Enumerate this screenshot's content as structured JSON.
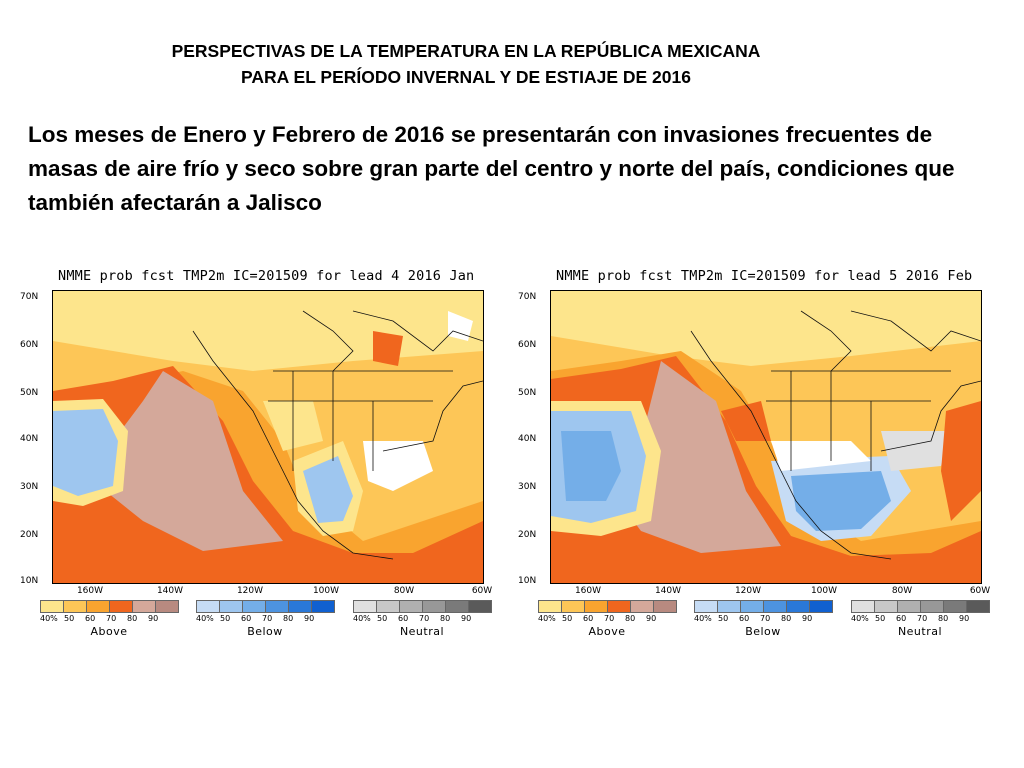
{
  "title": {
    "line1": "PERSPECTIVAS DE LA TEMPERATURA EN LA REPÚBLICA MEXICANA",
    "line2": "PARA EL PERÍODO INVERNAL Y DE ESTIAJE DE 2016"
  },
  "body_text": "Los meses de Enero y Febrero de 2016 se presentarán con invasiones frecuentes de masas de aire frío y seco sobre gran parte del centro y norte del país, condiciones que también afectarán a Jalisco",
  "maps": [
    {
      "title": "NMME prob fcst TMP2m IC=201509 for lead 4 2016 Jan"
    },
    {
      "title": "NMME prob fcst TMP2m IC=201509 for lead 5 2016 Feb"
    }
  ],
  "lat_labels": [
    "70N",
    "60N",
    "50N",
    "40N",
    "30N",
    "20N",
    "10N"
  ],
  "lon_labels": [
    "160W",
    "140W",
    "120W",
    "100W",
    "80W",
    "60W"
  ],
  "legend": [
    {
      "label": "Above",
      "ticks": [
        "40%",
        "50",
        "60",
        "70",
        "80",
        "90"
      ],
      "colors": [
        "#fde58c",
        "#fdc657",
        "#f9a42f",
        "#f0661e",
        "#d4a89a",
        "#b88a80"
      ]
    },
    {
      "label": "Below",
      "ticks": [
        "40%",
        "50",
        "60",
        "70",
        "80",
        "90"
      ],
      "colors": [
        "#c6dcf5",
        "#9ec6ef",
        "#74aee8",
        "#4d93e0",
        "#2a78d8",
        "#1060d0"
      ]
    },
    {
      "label": "Neutral",
      "ticks": [
        "40%",
        "50",
        "60",
        "70",
        "80",
        "90"
      ],
      "colors": [
        "#e0e0e0",
        "#c8c8c8",
        "#b0b0b0",
        "#989898",
        "#7a7a7a",
        "#5a5a5a"
      ]
    }
  ]
}
